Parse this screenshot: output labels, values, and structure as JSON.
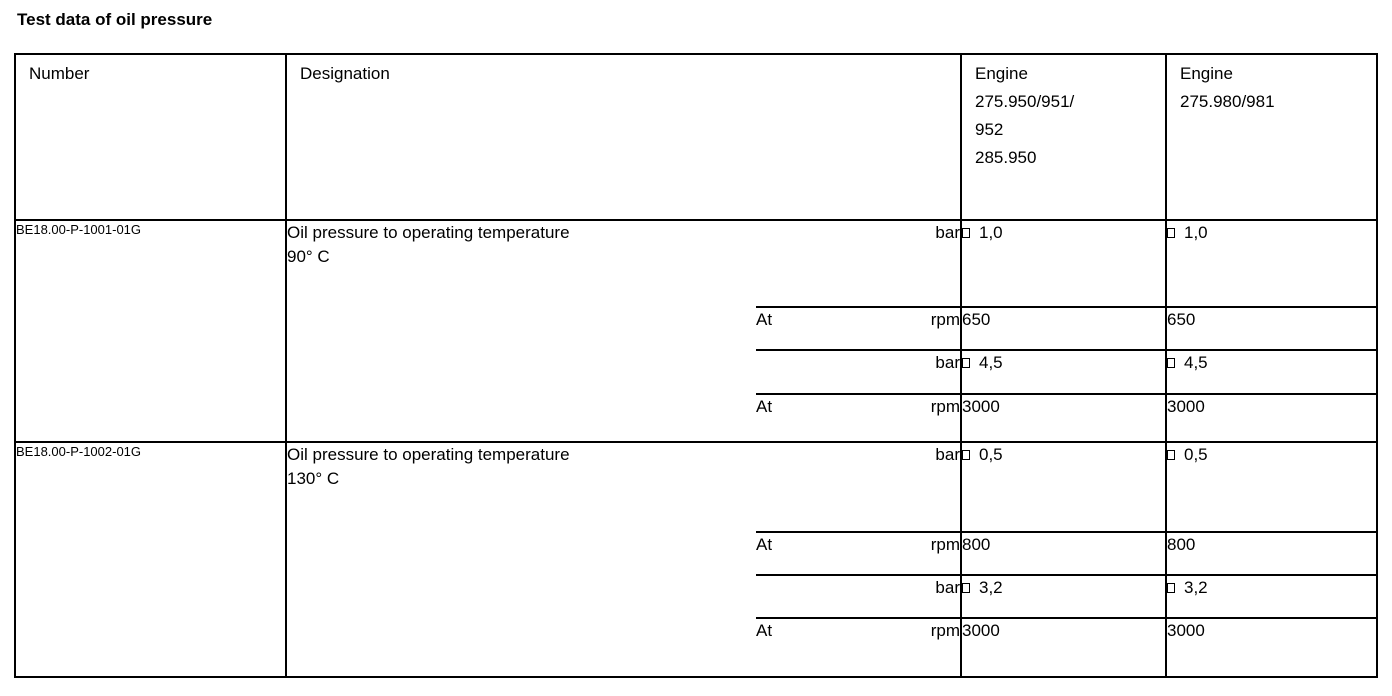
{
  "page": {
    "title": "Test data of oil pressure"
  },
  "table": {
    "headers": {
      "number": "Number",
      "designation": "Designation",
      "engine1": "Engine\n275.950/951/\n952\n285.950",
      "engine2": "Engine\n275.980/981"
    },
    "rows": [
      {
        "number": "BE18.00-P-1001-01G",
        "designation": "Oil pressure to operating temperature\n90° C",
        "subrows": [
          {
            "at": "",
            "unit": "bar",
            "engine1": "1,0",
            "engine2": "1,0",
            "tolerance_square": true
          },
          {
            "at": "At",
            "unit": "rpm",
            "engine1": "650",
            "engine2": "650",
            "tolerance_square": false
          },
          {
            "at": "",
            "unit": "bar",
            "engine1": "4,5",
            "engine2": "4,5",
            "tolerance_square": true
          },
          {
            "at": "At",
            "unit": "rpm",
            "engine1": "3000",
            "engine2": "3000",
            "tolerance_square": false
          }
        ]
      },
      {
        "number": "BE18.00-P-1002-01G",
        "designation": "Oil pressure to operating temperature\n130° C",
        "subrows": [
          {
            "at": "",
            "unit": "bar",
            "engine1": "0,5",
            "engine2": "0,5",
            "tolerance_square": true
          },
          {
            "at": "At",
            "unit": "rpm",
            "engine1": "800",
            "engine2": "800",
            "tolerance_square": false
          },
          {
            "at": "",
            "unit": "bar",
            "engine1": "3,2",
            "engine2": "3,2",
            "tolerance_square": true
          },
          {
            "at": "At",
            "unit": "rpm",
            "engine1": "3000",
            "engine2": "3000",
            "tolerance_square": false
          }
        ]
      }
    ]
  },
  "colors": {
    "background": "#ffffff",
    "text": "#000000",
    "border": "#000000"
  }
}
